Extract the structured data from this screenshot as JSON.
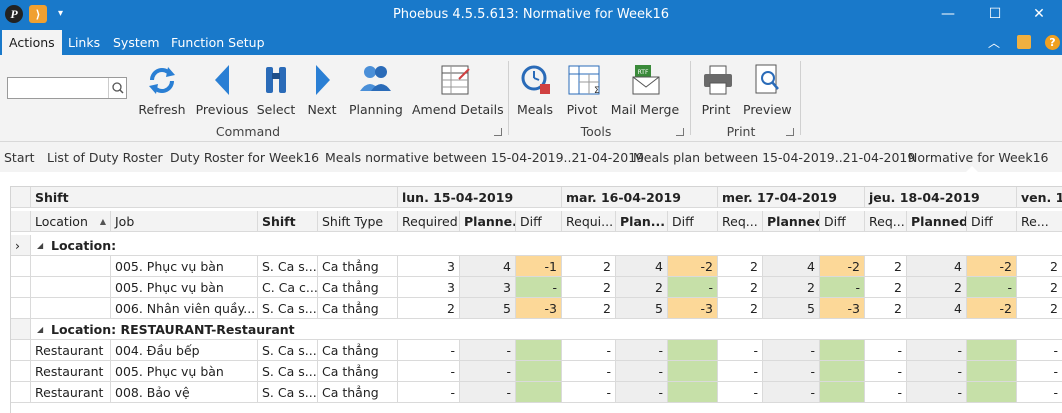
{
  "window": {
    "title": "Phoebus 4.5.5.613: Normative for Week16",
    "minimize": "—",
    "maximize": "☐",
    "close": "✕"
  },
  "menu": {
    "items": [
      "Actions",
      "Links",
      "System",
      "Function Setup"
    ],
    "active": "Actions"
  },
  "ribbon": {
    "search_value": "",
    "command": {
      "label": "Command",
      "buttons": [
        "Refresh",
        "Previous",
        "Select",
        "Next",
        "Planning",
        "Amend Details"
      ]
    },
    "tools": {
      "label": "Tools",
      "buttons": [
        "Meals",
        "Pivot",
        "Mail Merge"
      ]
    },
    "print": {
      "label": "Print",
      "buttons": [
        "Print",
        "Preview"
      ]
    }
  },
  "breadcrumb": [
    "Start",
    "List of Duty Roster",
    "Duty Roster for Week16",
    "Meals normative between 15-04-2019..21-04-2019",
    "Meals plan between 15-04-2019..21-04-2019",
    "Normative for Week16"
  ],
  "grid": {
    "band_shift": "Shift",
    "days": [
      "lun. 15-04-2019",
      "mar. 16-04-2019",
      "mer. 17-04-2019",
      "jeu. 18-04-2019",
      "ven. 1"
    ],
    "columns": {
      "location": "Location",
      "job": "Job",
      "shift": "Shift",
      "shift_type": "Shift Type",
      "d1": [
        "Required",
        "Planne...",
        "Diff"
      ],
      "d2": [
        "Requi...",
        "Plan...",
        "Diff"
      ],
      "d3": [
        "Req...",
        "Planned",
        "Diff"
      ],
      "d4": [
        "Req...",
        "Planned",
        "Diff"
      ],
      "d5": [
        "Re..."
      ]
    },
    "groups": [
      {
        "label": "Location:",
        "rows": [
          {
            "location": "",
            "job": "005. Phục vụ bàn",
            "shift": "S. Ca s...",
            "type": "Ca thẳng",
            "vals": [
              "3",
              "4",
              "-1",
              "2",
              "4",
              "-2",
              "2",
              "4",
              "-2",
              "2",
              "4",
              "-2",
              "2"
            ]
          },
          {
            "location": "",
            "job": "005. Phục vụ bàn",
            "shift": "C. Ca c...",
            "type": "Ca thẳng",
            "vals": [
              "3",
              "3",
              "-",
              "2",
              "2",
              "-",
              "2",
              "2",
              "-",
              "2",
              "2",
              "-",
              "2"
            ]
          },
          {
            "location": "",
            "job": "006. Nhân viên quầy...",
            "shift": "S. Ca s...",
            "type": "Ca thẳng",
            "vals": [
              "2",
              "5",
              "-3",
              "2",
              "5",
              "-3",
              "2",
              "5",
              "-3",
              "2",
              "4",
              "-2",
              "2"
            ]
          }
        ]
      },
      {
        "label": "Location: RESTAURANT-Restaurant",
        "rows": [
          {
            "location": "Restaurant",
            "job": "004. Đầu bếp",
            "shift": "S. Ca s...",
            "type": "Ca thẳng",
            "vals": [
              "-",
              "-",
              "",
              "-",
              "-",
              "",
              "-",
              "-",
              "",
              "-",
              "-",
              "",
              "-"
            ]
          },
          {
            "location": "Restaurant",
            "job": "005. Phục vụ bàn",
            "shift": "S. Ca s...",
            "type": "Ca thẳng",
            "vals": [
              "-",
              "-",
              "",
              "-",
              "-",
              "",
              "-",
              "-",
              "",
              "-",
              "-",
              "",
              "-"
            ]
          },
          {
            "location": "Restaurant",
            "job": "008. Bảo vệ",
            "shift": "S. Ca s...",
            "type": "Ca thẳng",
            "vals": [
              "-",
              "-",
              "",
              "-",
              "-",
              "",
              "-",
              "-",
              "",
              "-",
              "-",
              "",
              "-"
            ]
          }
        ]
      }
    ]
  }
}
